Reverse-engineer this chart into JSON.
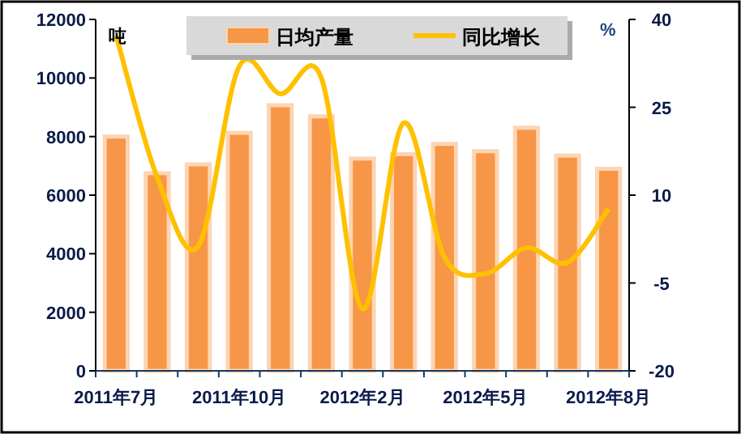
{
  "chart_data": {
    "type": "bar",
    "categories": [
      "2011年7月",
      null,
      null,
      "2011年10月",
      null,
      null,
      "2012年2月",
      null,
      null,
      "2012年5月",
      null,
      null,
      "2012年8月"
    ],
    "ylabel": "吨",
    "y2label": "%",
    "ylim": [
      0,
      12000
    ],
    "yticks": [
      0,
      2000,
      4000,
      6000,
      8000,
      10000,
      12000
    ],
    "y2lim": [
      -20,
      40
    ],
    "y2ticks": [
      -20,
      -5,
      10,
      25,
      40
    ],
    "legend": "top",
    "grid": false,
    "series": [
      {
        "name": "日均产量",
        "color": "#f79646",
        "values": [
          8000,
          6750,
          7050,
          8130,
          9070,
          8690,
          7250,
          7400,
          7750,
          7500,
          8300,
          7350,
          6900
        ]
      },
      {
        "name": "同比增长",
        "type": "line",
        "axis": "y2",
        "color": "#ffc000",
        "values": [
          37.2,
          13,
          1.3,
          32,
          27.3,
          30,
          -9.4,
          22.3,
          -0.6,
          -3.4,
          1,
          -1.5,
          7.7
        ]
      }
    ]
  }
}
